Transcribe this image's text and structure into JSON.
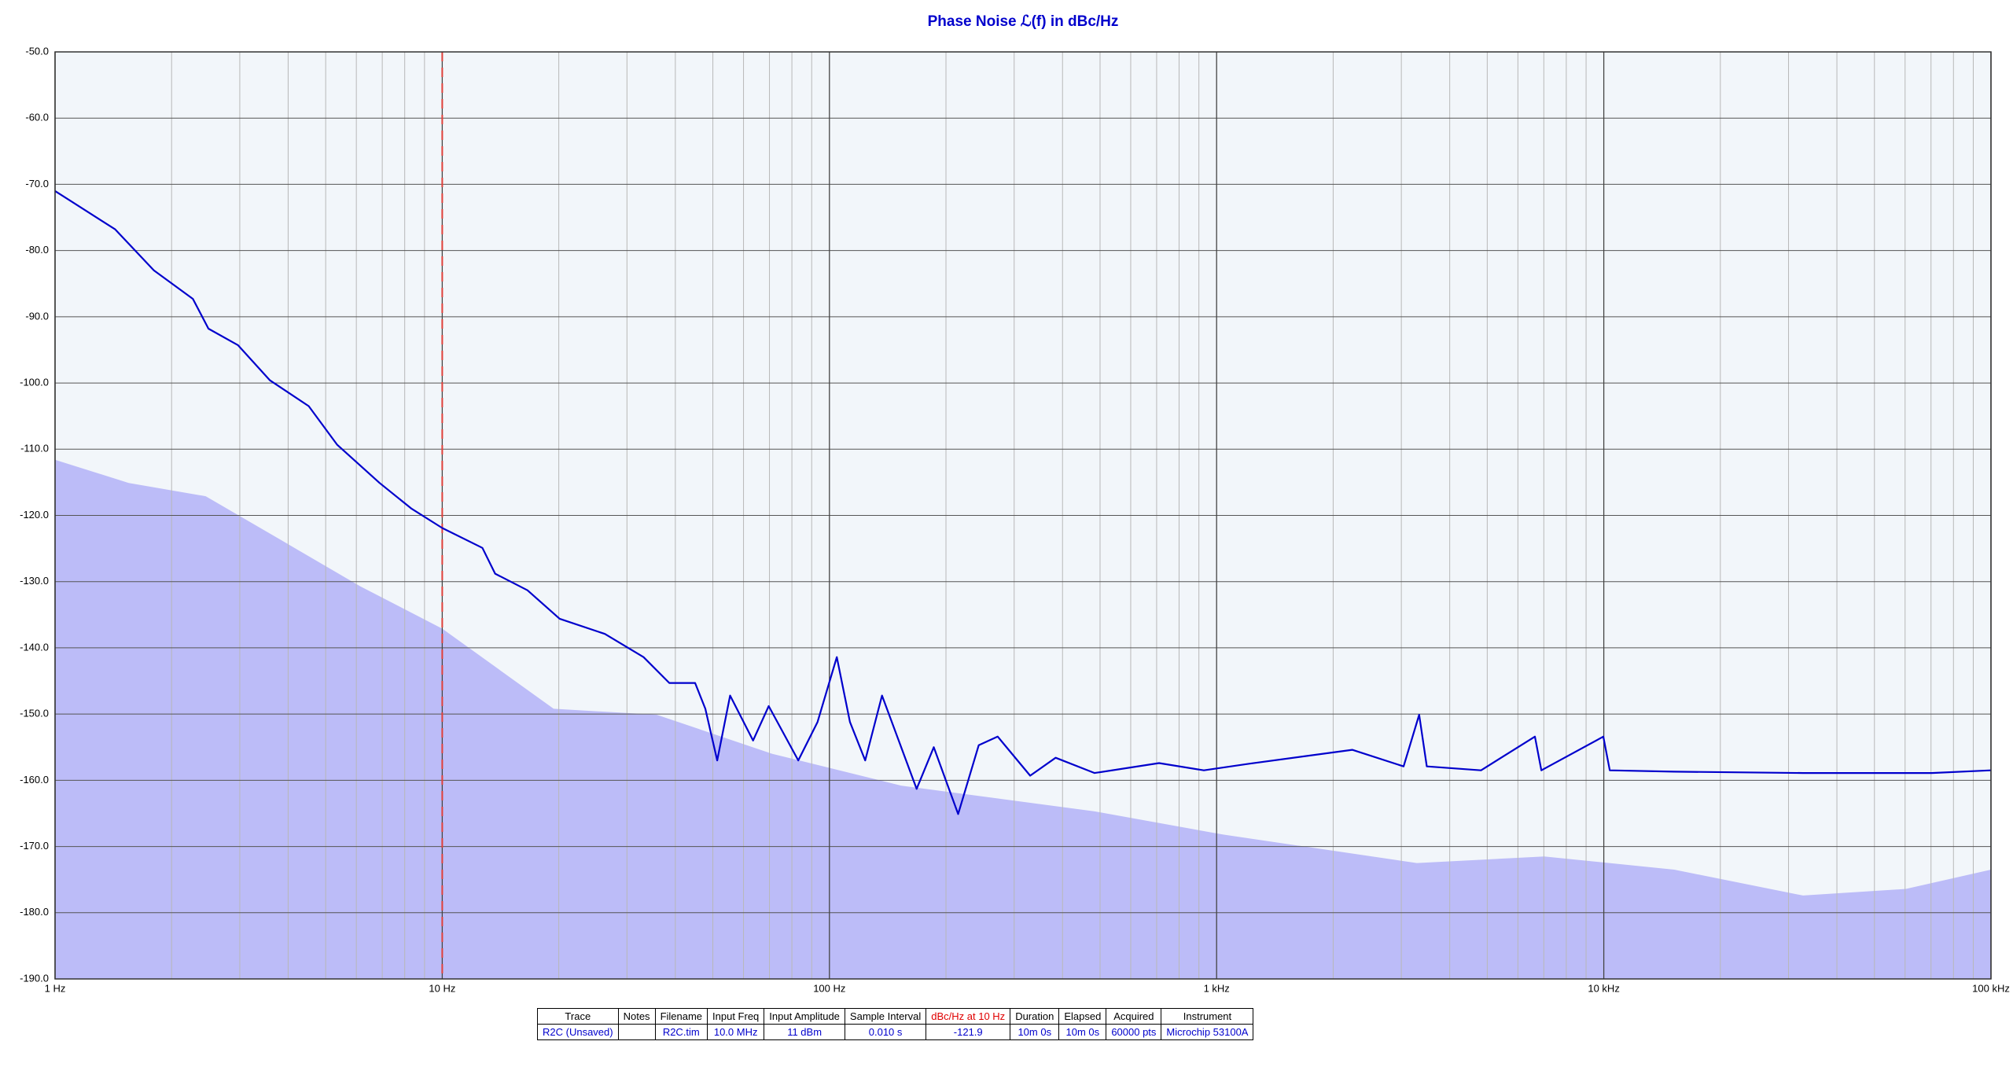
{
  "chart_data": {
    "type": "line",
    "title": "Phase Noise ℒ(f) in dBc/Hz",
    "xscale": "log",
    "grid": true,
    "minor_grid": true,
    "xlim": [
      1,
      100000
    ],
    "xticks": [
      {
        "value": 1,
        "label": "1 Hz"
      },
      {
        "value": 10,
        "label": "10 Hz"
      },
      {
        "value": 100,
        "label": "100 Hz"
      },
      {
        "value": 1000,
        "label": "1 kHz"
      },
      {
        "value": 10000,
        "label": "10 kHz"
      },
      {
        "value": 100000,
        "label": "100 kHz"
      }
    ],
    "ylim": [
      -190,
      -50
    ],
    "yticks": [
      {
        "value": -50,
        "label": "-50.0"
      },
      {
        "value": -60,
        "label": "-60.0"
      },
      {
        "value": -70,
        "label": "-70.0"
      },
      {
        "value": -80,
        "label": "-80.0"
      },
      {
        "value": -90,
        "label": "-90.0"
      },
      {
        "value": -100,
        "label": "-100.0"
      },
      {
        "value": -110,
        "label": "-110.0"
      },
      {
        "value": -120,
        "label": "-120.0"
      },
      {
        "value": -130,
        "label": "-130.0"
      },
      {
        "value": -140,
        "label": "-140.0"
      },
      {
        "value": -150,
        "label": "-150.0"
      },
      {
        "value": -160,
        "label": "-160.0"
      },
      {
        "value": -170,
        "label": "-170.0"
      },
      {
        "value": -180,
        "label": "-180.0"
      },
      {
        "value": -190,
        "label": "-190.0"
      }
    ],
    "marker_x": 10,
    "marker_color": "#e0403a",
    "series": [
      {
        "type": "area",
        "color": "#bcbcf8",
        "x": [
          1,
          1.55,
          2.45,
          3.88,
          6.14,
          10,
          19.4,
          35.8,
          71.2,
          153,
          484,
          1040,
          3290,
          7020,
          15200,
          32700,
          60300,
          100000
        ],
        "values": [
          -111.6,
          -115.1,
          -117.1,
          -123.9,
          -130.7,
          -137.1,
          -149.2,
          -150.1,
          -156,
          -160.8,
          -164.7,
          -168.2,
          -172.5,
          -171.5,
          -173.5,
          -177.4,
          -176.4,
          -173.5
        ]
      },
      {
        "type": "line",
        "color": "#0000cc",
        "x": [
          1,
          1.43,
          1.8,
          2.27,
          2.49,
          2.97,
          3.59,
          4.52,
          5.35,
          6.89,
          8.34,
          10,
          12.7,
          13.7,
          16.6,
          20.1,
          26.3,
          33.1,
          38.6,
          45,
          47.8,
          51.3,
          55.4,
          63.5,
          69.7,
          83.1,
          93.2,
          104.5,
          113,
          123.7,
          136.7,
          168,
          186,
          215,
          243,
          272,
          330,
          384,
          484,
          710,
          927,
          1213,
          2240,
          3040,
          3335,
          3490,
          4820,
          6640,
          6900,
          9970,
          10360,
          15200,
          32700,
          70300,
          100000
        ],
        "values": [
          -71,
          -76.8,
          -83,
          -87.3,
          -91.8,
          -94.3,
          -99.6,
          -103.5,
          -109.3,
          -115.1,
          -119,
          -121.9,
          -124.9,
          -128.8,
          -131.3,
          -135.6,
          -137.9,
          -141.4,
          -145.3,
          -145.3,
          -149.2,
          -157,
          -147.2,
          -154,
          -148.8,
          -157,
          -151.2,
          -141.4,
          -151.2,
          -157,
          -147.2,
          -161.3,
          -155,
          -165.1,
          -154.7,
          -153.4,
          -159.3,
          -156.6,
          -158.9,
          -157.4,
          -158.5,
          -157.5,
          -155.4,
          -157.9,
          -150.1,
          -157.9,
          -158.5,
          -153.4,
          -158.5,
          -153.4,
          -158.5,
          -158.7,
          -158.9,
          -158.9,
          -158.5
        ]
      }
    ]
  },
  "table": {
    "headers": [
      "Trace",
      "Notes",
      "Filename",
      "Input Freq",
      "Input Amplitude",
      "Sample Interval",
      "dBc/Hz at 10 Hz",
      "Duration",
      "Elapsed",
      "Acquired",
      "Instrument"
    ],
    "rows": [
      [
        "R2C (Unsaved)",
        null,
        "R2C.tim",
        "10.0 MHz",
        "11 dBm",
        "0.010 s",
        "-121.9",
        "10m 0s",
        "10m 0s",
        "60000 pts",
        "Microchip 53100A"
      ]
    ]
  }
}
